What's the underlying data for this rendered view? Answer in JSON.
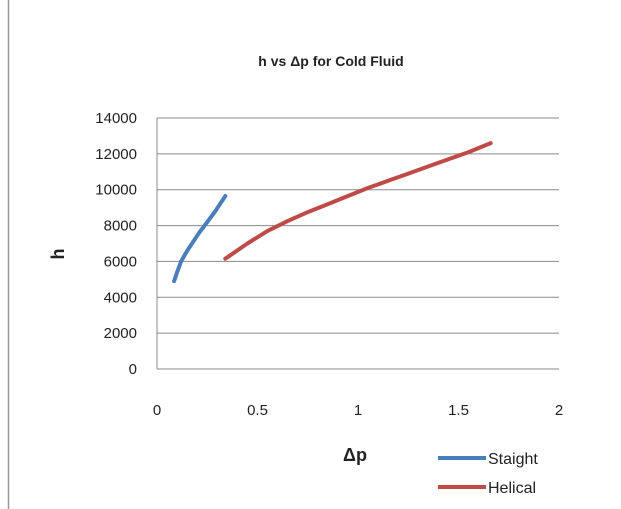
{
  "chart_data": {
    "type": "line",
    "title": "h vs Δp for Cold Fluid",
    "xlabel": "Δp",
    "ylabel": "h",
    "xlim": [
      0,
      2
    ],
    "ylim": [
      0,
      14000
    ],
    "x_ticks": [
      0,
      0.5,
      1,
      1.5,
      2
    ],
    "x_tick_labels": [
      "0",
      "0.5",
      "1",
      "1.5",
      "2"
    ],
    "y_ticks": [
      0,
      2000,
      4000,
      6000,
      8000,
      10000,
      12000,
      14000
    ],
    "y_tick_labels": [
      "0",
      "2000",
      "4000",
      "6000",
      "8000",
      "10000",
      "12000",
      "14000"
    ],
    "grid": "horizontal major gridlines",
    "legend_position": "bottom-right",
    "series": [
      {
        "name": "Staight",
        "color": "#4a7ebb",
        "x": [
          0.085,
          0.1,
          0.12,
          0.15,
          0.18,
          0.21,
          0.25,
          0.29,
          0.34
        ],
        "y": [
          4900,
          5400,
          6000,
          6600,
          7100,
          7600,
          8200,
          8800,
          9650
        ]
      },
      {
        "name": "Helical",
        "color": "#be4b48",
        "x": [
          0.34,
          0.45,
          0.55,
          0.65,
          0.75,
          0.85,
          0.95,
          1.05,
          1.15,
          1.25,
          1.35,
          1.45,
          1.55,
          1.66
        ],
        "y": [
          6150,
          7000,
          7700,
          8250,
          8750,
          9200,
          9650,
          10100,
          10500,
          10900,
          11300,
          11700,
          12100,
          12600
        ]
      }
    ]
  }
}
